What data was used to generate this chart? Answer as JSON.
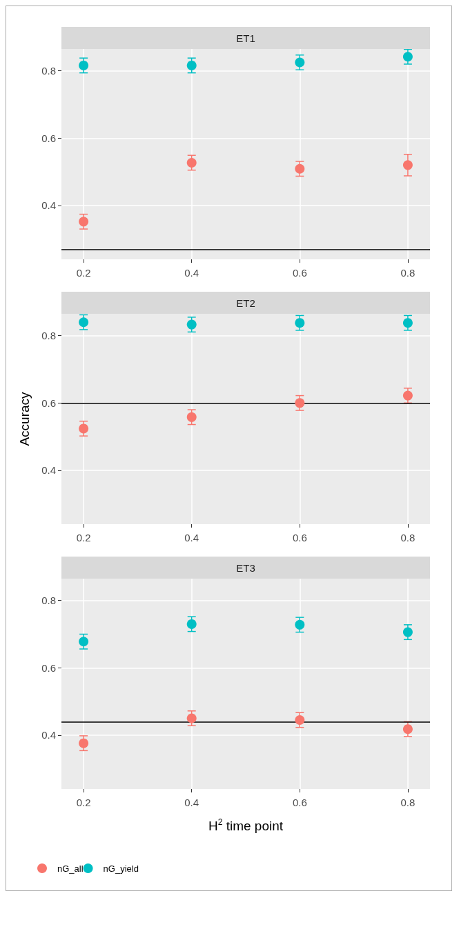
{
  "chart_data": [
    {
      "type": "scatter",
      "title": "ET1",
      "x": [
        0.2,
        0.4,
        0.6,
        0.8
      ],
      "xlim": [
        0.159,
        0.841
      ],
      "xticks": [
        0.2,
        0.4,
        0.6,
        0.8
      ],
      "ylim": [
        0.24,
        0.865
      ],
      "yticks": [
        0.4,
        0.6,
        0.8
      ],
      "grid": true,
      "marker": "circle",
      "legend": false,
      "series": [
        {
          "color": "#f8766d",
          "values": [
            0.352,
            0.527,
            0.509,
            0.52
          ],
          "errors": [
            0.022,
            0.022,
            0.022,
            0.032
          ]
        },
        {
          "color": "#00bfc4",
          "values": [
            0.816,
            0.816,
            0.825,
            0.842
          ],
          "errors": [
            0.022,
            0.022,
            0.022,
            0.022
          ]
        }
      ],
      "ref_lines": [
        {
          "axis": "y",
          "value": 0.27,
          "color": "#000000"
        }
      ]
    },
    {
      "type": "scatter",
      "title": "ET2",
      "ylabel": "Accuracy",
      "x": [
        0.2,
        0.4,
        0.6,
        0.8
      ],
      "xlim": [
        0.159,
        0.841
      ],
      "xticks": [
        0.2,
        0.4,
        0.6,
        0.8
      ],
      "ylim": [
        0.24,
        0.865
      ],
      "yticks": [
        0.4,
        0.6,
        0.8
      ],
      "grid": true,
      "marker": "circle",
      "legend": false,
      "series": [
        {
          "color": "#f8766d",
          "values": [
            0.524,
            0.558,
            0.6,
            0.622
          ],
          "errors": [
            0.022,
            0.022,
            0.022,
            0.022
          ]
        },
        {
          "color": "#00bfc4",
          "values": [
            0.84,
            0.833,
            0.838,
            0.838
          ],
          "errors": [
            0.022,
            0.022,
            0.022,
            0.022
          ]
        }
      ],
      "ref_lines": [
        {
          "axis": "y",
          "value": 0.6,
          "color": "#000000"
        }
      ]
    },
    {
      "type": "scatter",
      "title": "ET3",
      "xlabel": "H$^{2}$ time point",
      "x": [
        0.2,
        0.4,
        0.6,
        0.8
      ],
      "xlim": [
        0.159,
        0.841
      ],
      "xticks": [
        0.2,
        0.4,
        0.6,
        0.8
      ],
      "ylim": [
        0.24,
        0.865
      ],
      "yticks": [
        0.4,
        0.6,
        0.8
      ],
      "grid": true,
      "marker": "circle",
      "legend": "bottom",
      "series": [
        {
          "name": "nG_all",
          "color": "#f8766d",
          "values": [
            0.376,
            0.45,
            0.445,
            0.418
          ],
          "errors": [
            0.022,
            0.022,
            0.022,
            0.022
          ]
        },
        {
          "name": "nG_yield",
          "color": "#00bfc4",
          "values": [
            0.678,
            0.73,
            0.728,
            0.706
          ],
          "errors": [
            0.022,
            0.022,
            0.022,
            0.022
          ]
        }
      ],
      "ref_lines": [
        {
          "axis": "y",
          "value": 0.44,
          "color": "#000000"
        }
      ]
    }
  ]
}
